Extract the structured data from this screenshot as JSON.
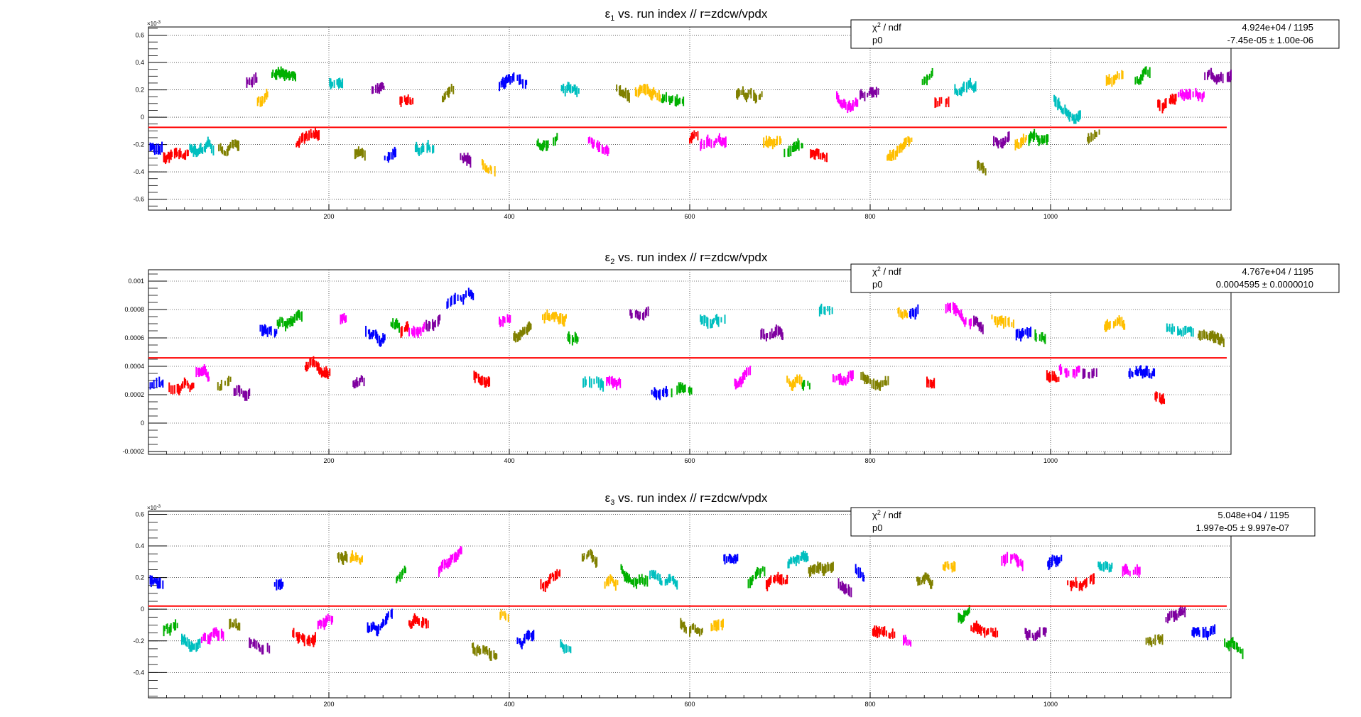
{
  "chart_data": [
    {
      "type": "scatter",
      "title_symbol": "ε",
      "title_sub": "1",
      "title_rest": " vs. run index // r=zdcw/vpdx",
      "ylim": [
        -0.00068,
        0.00066
      ],
      "xlim": [
        0,
        1200
      ],
      "y_multiplier": "×10",
      "y_multiplier_exp": "-3",
      "yticks": [
        -0.6,
        -0.4,
        -0.2,
        0,
        0.2,
        0.4,
        0.6
      ],
      "ytick_labels": [
        "-0.6",
        "-0.4",
        "-0.2",
        "0",
        "0.2",
        "0.4",
        "0.6"
      ],
      "ytick_scale": 0.001,
      "xticks": [
        200,
        400,
        600,
        800,
        1000
      ],
      "xtick_labels": [
        "200",
        "400",
        "600",
        "800",
        "1000"
      ],
      "fit_value": -7.45e-05,
      "stats": {
        "row1_label_pre": "χ",
        "row1_label_sup": "2",
        "row1_label_post": " / ndf",
        "row1_value": "4.924e+04 / 1195",
        "row2_label": "p0",
        "row2_value": "-7.45e-05 ± 1.00e-06"
      },
      "seed": 11
    },
    {
      "type": "scatter",
      "title_symbol": "ε",
      "title_sub": "2",
      "title_rest": " vs. run index // r=zdcw/vpdx",
      "ylim": [
        -0.00022,
        0.00108
      ],
      "xlim": [
        0,
        1200
      ],
      "y_multiplier": "",
      "y_multiplier_exp": "",
      "yticks": [
        -0.0002,
        0,
        0.0002,
        0.0004,
        0.0006,
        0.0008,
        0.001
      ],
      "ytick_labels": [
        "-0.0002",
        "0",
        "0.0002",
        "0.0004",
        "0.0006",
        "0.0008",
        "0.001"
      ],
      "ytick_scale": 1,
      "xticks": [
        200,
        400,
        600,
        800,
        1000
      ],
      "xtick_labels": [
        "200",
        "400",
        "600",
        "800",
        "1000"
      ],
      "fit_value": 0.0004595,
      "stats": {
        "row1_label_pre": "χ",
        "row1_label_sup": "2",
        "row1_label_post": " / ndf",
        "row1_value": "4.767e+04 / 1195",
        "row2_label": "p0",
        "row2_value": "0.0004595 ± 0.0000010"
      },
      "seed": 23
    },
    {
      "type": "scatter",
      "title_symbol": "ε",
      "title_sub": "3",
      "title_rest": " vs. run index // r=zdcw/vpdx",
      "ylim": [
        -0.00056,
        0.00062
      ],
      "xlim": [
        0,
        1200
      ],
      "y_multiplier": "×10",
      "y_multiplier_exp": "-3",
      "yticks": [
        -0.4,
        -0.2,
        0,
        0.2,
        0.4,
        0.6
      ],
      "ytick_labels": [
        "-0.4",
        "-0.2",
        "0",
        "0.2",
        "0.4",
        "0.6"
      ],
      "ytick_scale": 0.001,
      "xticks": [
        200,
        400,
        600,
        800,
        1000
      ],
      "xtick_labels": [
        "200",
        "400",
        "600",
        "800",
        "1000"
      ],
      "fit_value": 1.997e-05,
      "stats": {
        "row1_label_pre": "χ",
        "row1_label_sup": "2",
        "row1_label_post": " / ndf",
        "row1_value": "5.048e+04 / 1195",
        "row2_label": "p0",
        "row2_value": "1.997e-05 ± 9.997e-07"
      },
      "seed": 37
    }
  ],
  "colors": {
    "series": [
      "#0000ff",
      "#00b000",
      "#ff0000",
      "#00bfbf",
      "#ff00ff",
      "#808000",
      "#7f00a0",
      "#ffbf00"
    ],
    "fit_line": "#ff0000",
    "grid": "#000000",
    "axis": "#000000"
  }
}
